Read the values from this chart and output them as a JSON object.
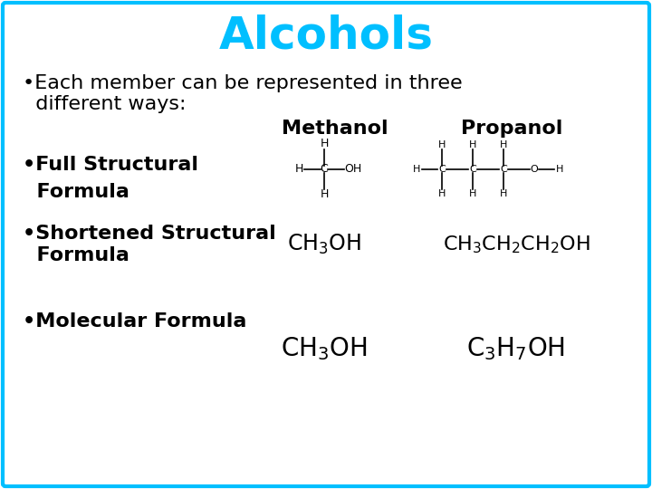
{
  "title": "Alcohols",
  "title_color": "#00BFFF",
  "title_fontsize": 36,
  "bg_color": "#FFFFFF",
  "border_color": "#00BFFF",
  "border_lw": 3,
  "body_font": "Comic Sans MS",
  "body_fontsize": 16,
  "body_color": "#000000",
  "bullet1_line1": "•Each member can be represented in three",
  "bullet1_line2": "  different ways:",
  "col_methanol": "Methanol",
  "col_propanol": "Propanol",
  "bullet2_line1": "•Full Structural",
  "bullet2_line2": "  Formula",
  "bullet3_line1": "•Shortened Structural",
  "bullet3_line2": "  Formula",
  "bullet4": "•Molecular Formula",
  "methanol_short": "CH$_3$OH",
  "propanol_short": "CH$_3$CH$_2$CH$_2$OH",
  "methanol_mol": "CH$_3$OH",
  "propanol_mol": "C$_3$H$_7$OH"
}
